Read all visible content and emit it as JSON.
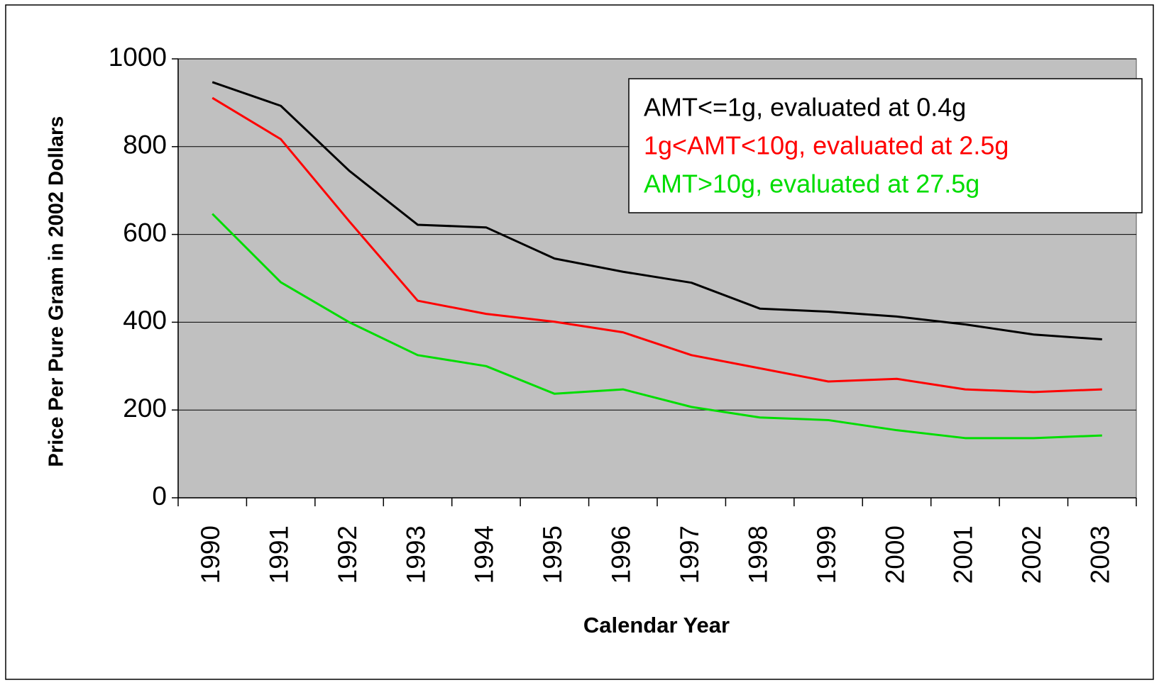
{
  "chart_data": {
    "type": "line",
    "xlabel": "Calendar Year",
    "ylabel": "Price Per Pure Gram in 2002 Dollars",
    "categories": [
      "1990",
      "1991",
      "1992",
      "1993",
      "1994",
      "1995",
      "1996",
      "1997",
      "1998",
      "1999",
      "2000",
      "2001",
      "2002",
      "2003"
    ],
    "series": [
      {
        "name": "AMT<=1g, evaluated at 0.4g",
        "color": "#000000",
        "values": [
          947,
          893,
          745,
          622,
          616,
          545,
          515,
          490,
          431,
          424,
          413,
          395,
          372,
          361
        ]
      },
      {
        "name": "1g<AMT<10g, evaluated at 2.5g",
        "color": "#ff0000",
        "values": [
          911,
          817,
          630,
          449,
          419,
          401,
          377,
          325,
          295,
          265,
          271,
          247,
          241,
          247
        ]
      },
      {
        "name": "AMT>10g, evaluated at 27.5g",
        "color": "#00dd00",
        "values": [
          647,
          491,
          400,
          325,
          300,
          237,
          247,
          207,
          183,
          177,
          154,
          136,
          136,
          142
        ]
      }
    ],
    "ylim": [
      0,
      1000
    ],
    "yticks": [
      0,
      200,
      400,
      600,
      800,
      1000
    ],
    "grid": true,
    "legend": "upper right",
    "plot_background": "#c0c0c0"
  }
}
